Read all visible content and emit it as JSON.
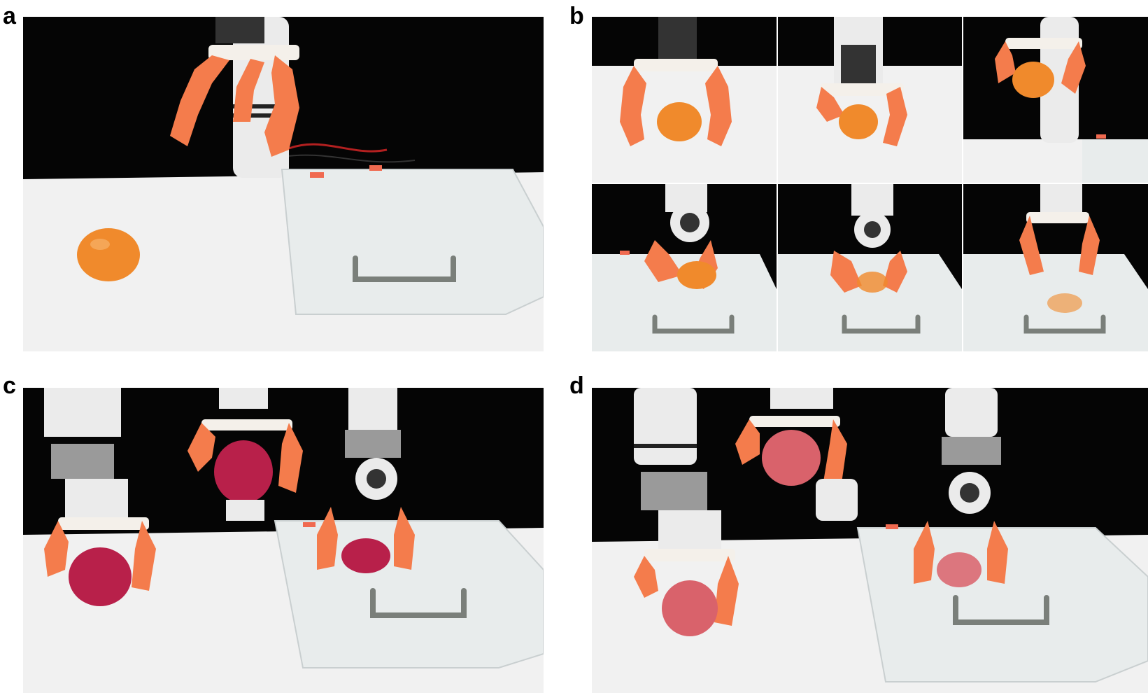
{
  "figure": {
    "panels": [
      {
        "label": "a"
      },
      {
        "label": "b"
      },
      {
        "label": "c"
      },
      {
        "label": "d"
      }
    ]
  },
  "colors": {
    "backdrop": "#050505",
    "table": "#f2f2f2",
    "gripper": "#f47c4c",
    "orange_fruit": "#f08a2c",
    "dragon_fruit": "#b8204a",
    "apple": "#d9626b",
    "box": "#e9edee",
    "handle": "#7a7f7a",
    "arm": "#eeeeee"
  }
}
